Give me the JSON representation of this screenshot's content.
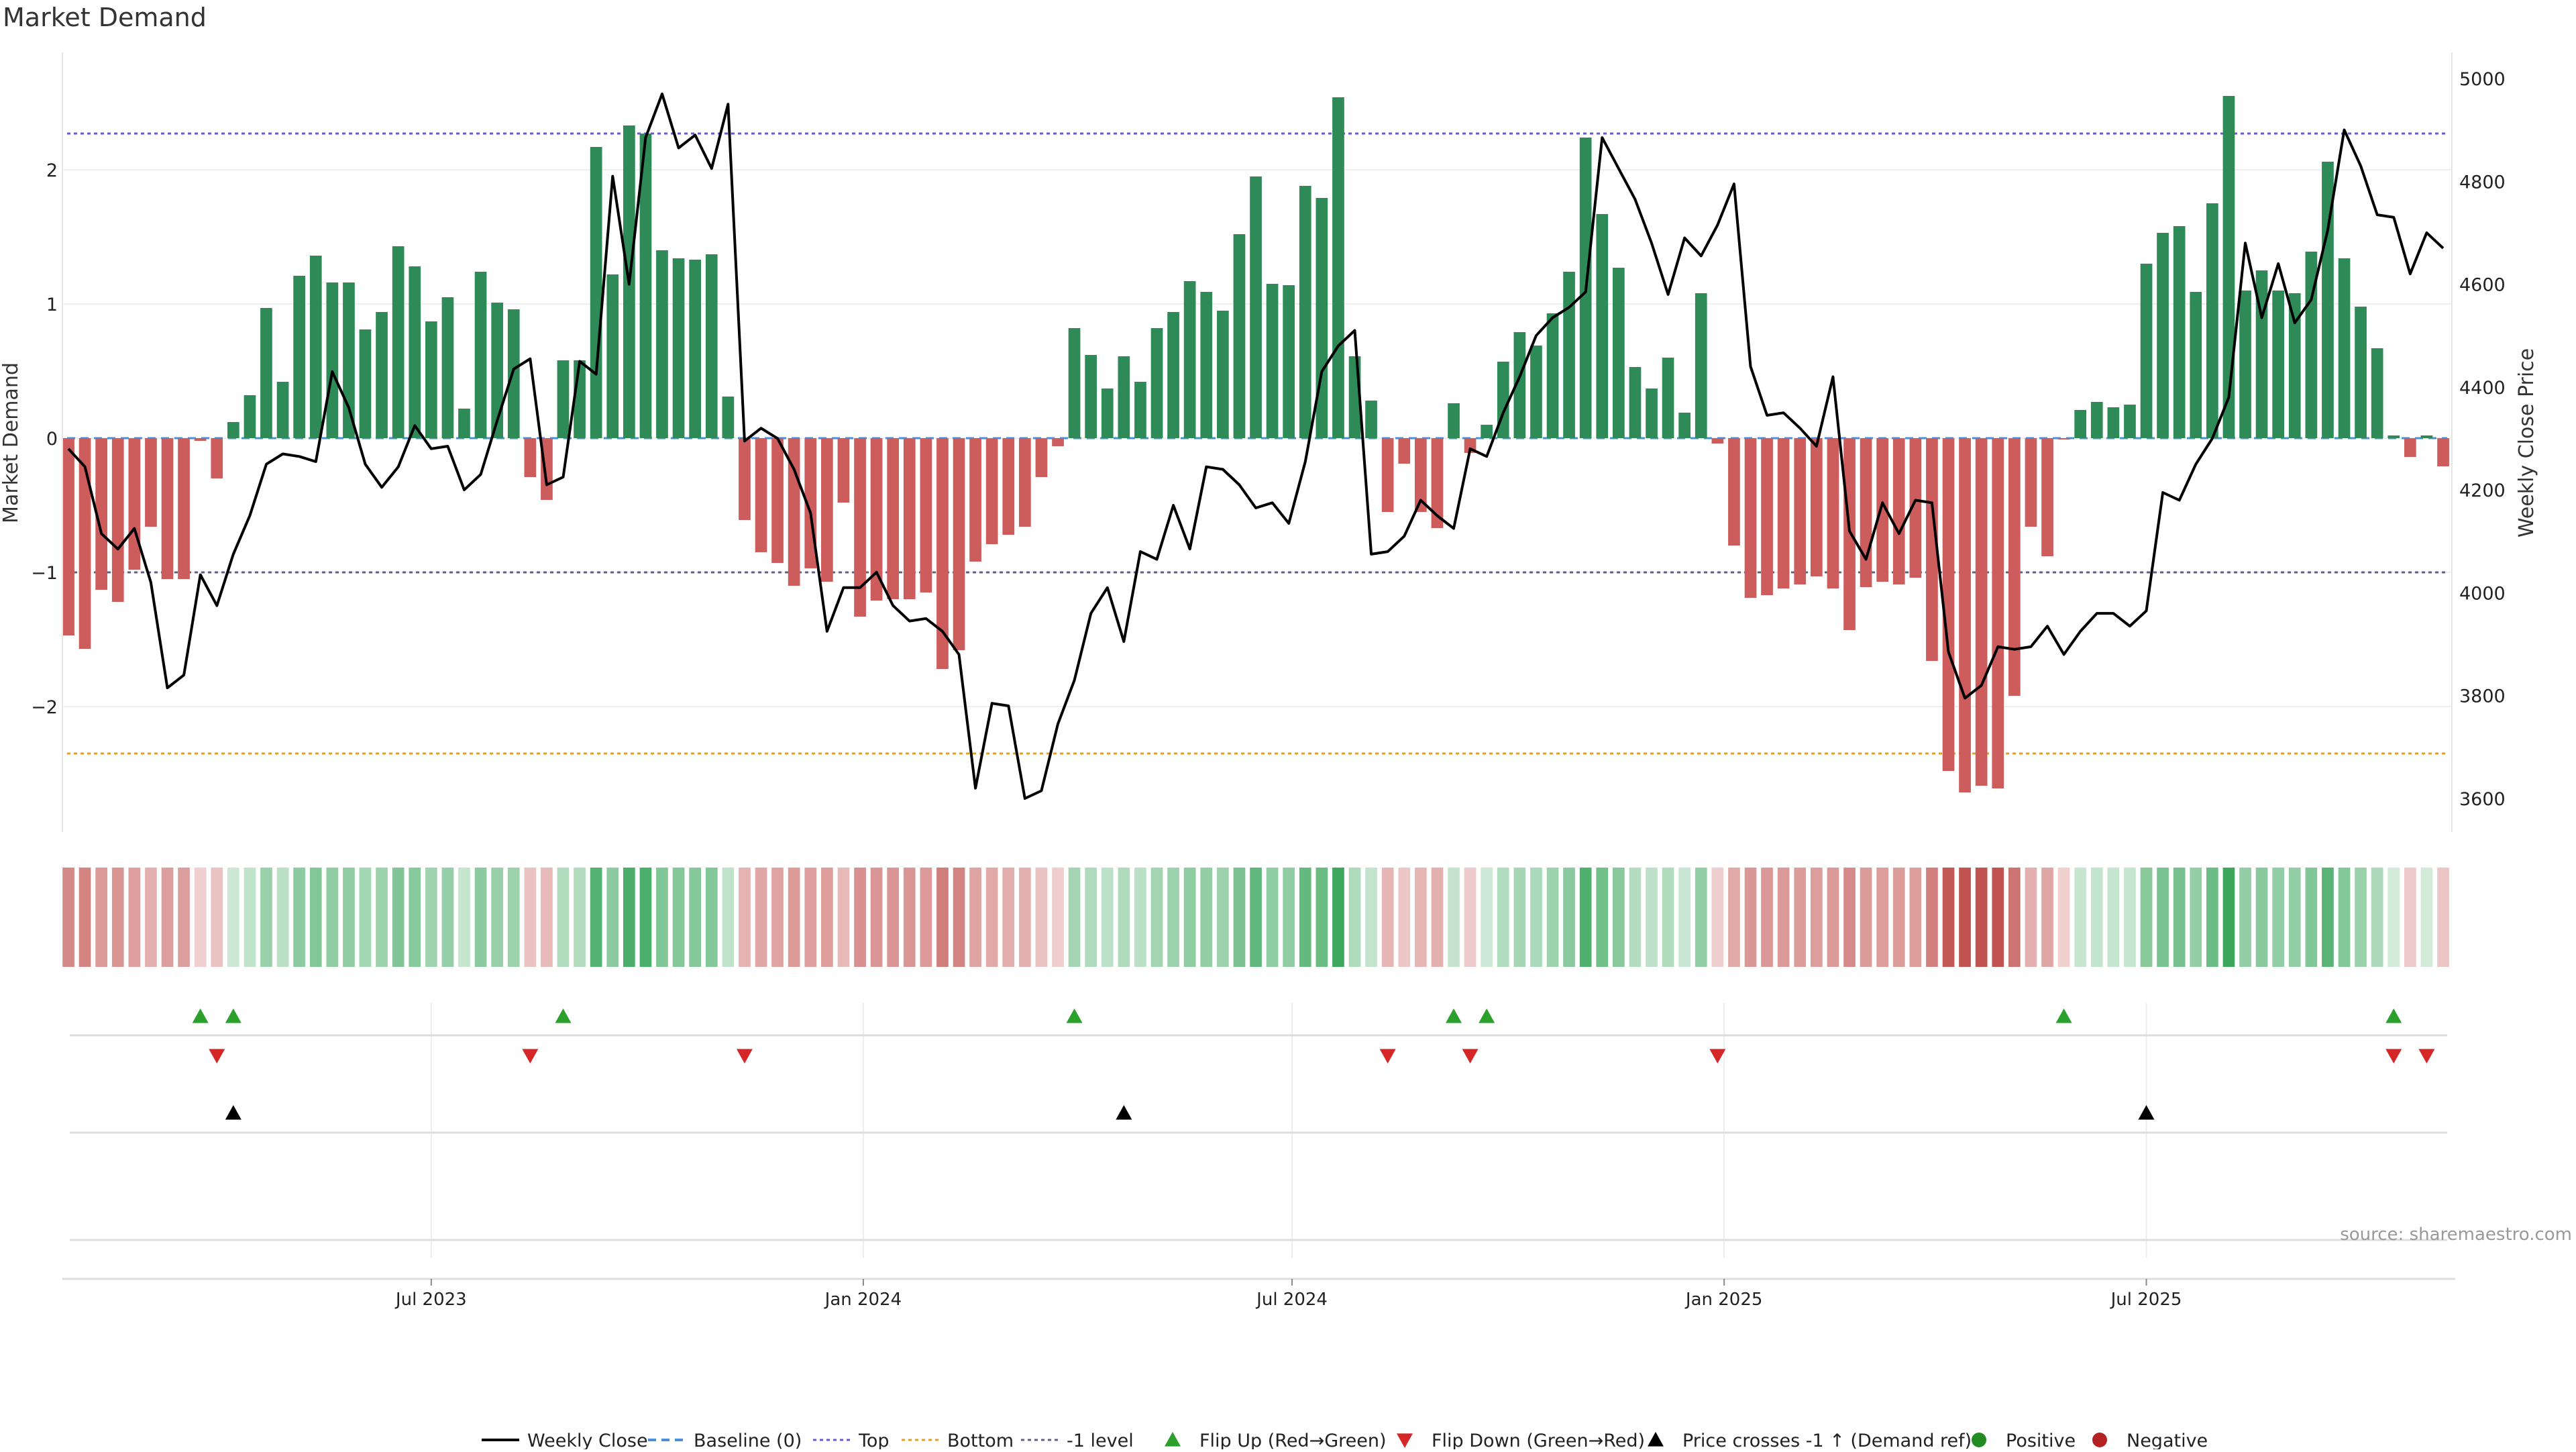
{
  "title": "Market Demand",
  "source": "source: sharemaestro.com",
  "colors": {
    "positive": "#2e8b57",
    "negative": "#cd5c5c",
    "line": "#000000",
    "top": "#6a5acd",
    "bottom": "#e0a030",
    "minus1": "#606080",
    "baseline": "#4a90d9",
    "flip_up": "#2ca02c",
    "flip_down": "#d62728",
    "cross": "#000000",
    "pos_dot": "#228b22",
    "neg_dot": "#b22222"
  },
  "chart_data": {
    "type": "bar",
    "title": "Market Demand",
    "ylabel": "Market Demand",
    "y2label": "Weekly Close Price",
    "ylim": [
      -2.95,
      2.85
    ],
    "y2lim": [
      3540,
      5050
    ],
    "yticks": [
      -2,
      -1,
      0,
      1,
      2
    ],
    "ytick_labels": [
      "−2",
      "−1",
      "0",
      "1",
      "2"
    ],
    "y2ticks": [
      3600,
      3800,
      4000,
      4200,
      4400,
      4600,
      4800,
      5000
    ],
    "y2tick_labels": [
      "3600",
      "3800",
      "4000",
      "4200",
      "4400",
      "4600",
      "4800",
      "5000"
    ],
    "xticks": [
      {
        "index": 22,
        "label": "Jul 2023"
      },
      {
        "index": 48.2,
        "label": "Jan 2024"
      },
      {
        "index": 74.2,
        "label": "Jul 2024"
      },
      {
        "index": 100.4,
        "label": "Jan 2025"
      },
      {
        "index": 126,
        "label": "Jul 2025"
      }
    ],
    "levels": {
      "top": 2.27,
      "bottom": -2.35,
      "minus1": -1.0,
      "baseline": 0
    },
    "demand": [
      -1.47,
      -1.57,
      -1.13,
      -1.22,
      -0.98,
      -0.66,
      -1.05,
      -1.05,
      -0.02,
      -0.3,
      0.12,
      0.32,
      0.97,
      0.42,
      1.21,
      1.36,
      1.16,
      1.16,
      0.81,
      0.94,
      1.43,
      1.28,
      0.87,
      1.05,
      0.22,
      1.24,
      1.01,
      0.96,
      -0.29,
      -0.46,
      0.58,
      0.58,
      2.17,
      1.22,
      2.33,
      2.27,
      1.4,
      1.34,
      1.33,
      1.37,
      0.31,
      -0.61,
      -0.85,
      -0.93,
      -1.1,
      -0.97,
      -1.07,
      -0.48,
      -1.33,
      -1.21,
      -1.2,
      -1.2,
      -1.15,
      -1.72,
      -1.58,
      -0.92,
      -0.79,
      -0.72,
      -0.66,
      -0.29,
      -0.06,
      0.82,
      0.62,
      0.37,
      0.61,
      0.42,
      0.82,
      0.94,
      1.17,
      1.09,
      0.95,
      1.52,
      1.95,
      1.15,
      1.14,
      1.88,
      1.79,
      2.54,
      0.61,
      0.28,
      -0.55,
      -0.19,
      -0.55,
      -0.67,
      0.26,
      -0.11,
      0.1,
      0.57,
      0.79,
      0.69,
      0.93,
      1.24,
      2.24,
      1.67,
      1.27,
      0.53,
      0.37,
      0.6,
      0.19,
      1.08,
      -0.04,
      -0.8,
      -1.19,
      -1.17,
      -1.12,
      -1.09,
      -1.03,
      -1.12,
      -1.43,
      -1.11,
      -1.07,
      -1.09,
      -1.04,
      -1.66,
      -2.48,
      -2.64,
      -2.59,
      -2.61,
      -1.92,
      -0.66,
      -0.88,
      -0.01,
      0.21,
      0.27,
      0.23,
      0.25,
      1.3,
      1.53,
      1.58,
      1.09,
      1.75,
      2.55,
      1.1,
      1.25,
      1.1,
      1.08,
      1.39,
      2.06,
      1.34,
      0.98,
      0.67,
      0.02,
      -0.14,
      0.02,
      -0.21
    ],
    "close": [
      4280,
      4245,
      4115,
      4085,
      4125,
      4020,
      3815,
      3840,
      4035,
      3975,
      4075,
      4150,
      4250,
      4270,
      4265,
      4255,
      4430,
      4360,
      4250,
      4205,
      4245,
      4325,
      4280,
      4285,
      4200,
      4230,
      4335,
      4435,
      4455,
      4210,
      4225,
      4450,
      4425,
      4810,
      4600,
      4885,
      4970,
      4865,
      4890,
      4825,
      4950,
      4295,
      4320,
      4300,
      4240,
      4155,
      3925,
      4010,
      4010,
      4040,
      3975,
      3945,
      3950,
      3925,
      3880,
      3620,
      3785,
      3780,
      3600,
      3615,
      3745,
      3830,
      3960,
      4010,
      3905,
      4080,
      4065,
      4170,
      4085,
      4245,
      4240,
      4210,
      4165,
      4175,
      4135,
      4255,
      4430,
      4480,
      4510,
      4075,
      4080,
      4110,
      4180,
      4150,
      4125,
      4280,
      4265,
      4350,
      4420,
      4500,
      4535,
      4555,
      4585,
      4885,
      4825,
      4765,
      4680,
      4580,
      4690,
      4655,
      4715,
      4795,
      4440,
      4345,
      4350,
      4320,
      4285,
      4420,
      4120,
      4065,
      4175,
      4115,
      4180,
      4175,
      3885,
      3795,
      3820,
      3895,
      3890,
      3895,
      3935,
      3880,
      3925,
      3960,
      3960,
      3935,
      3965,
      4195,
      4180,
      4250,
      4300,
      4380,
      4680,
      4535,
      4640,
      4525,
      4570,
      4705,
      4900,
      4830,
      4735,
      4730,
      4620,
      4700,
      4670
    ],
    "flip_up": [
      8,
      10,
      30,
      61,
      84,
      86,
      121,
      141
    ],
    "flip_down": [
      9,
      28,
      41,
      80,
      85,
      100,
      141,
      143
    ],
    "price_cross": [
      10,
      64,
      126
    ]
  },
  "legend": [
    {
      "key": "line",
      "label": "Weekly Close"
    },
    {
      "key": "dash",
      "label": "Baseline (0)"
    },
    {
      "key": "dot_top",
      "label": "Top"
    },
    {
      "key": "dot_bottom",
      "label": "Bottom"
    },
    {
      "key": "dot_minus1",
      "label": "-1 level"
    },
    {
      "key": "tri_up",
      "label": "Flip Up (Red→Green)"
    },
    {
      "key": "tri_down",
      "label": "Flip Down (Green→Red)"
    },
    {
      "key": "tri_black",
      "label": "Price crosses -1 ↑ (Demand ref)"
    },
    {
      "key": "dot_pos",
      "label": "Positive"
    },
    {
      "key": "dot_neg",
      "label": "Negative"
    }
  ]
}
